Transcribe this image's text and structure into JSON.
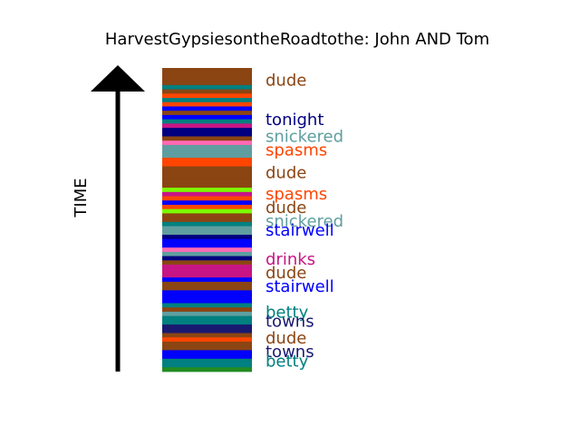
{
  "chart_data": {
    "type": "bar",
    "title": "HarvestGypsiesontheRoadtothe: John AND Tom",
    "ylabel": "TIME",
    "stripes": [
      {
        "color": "#8b4513"
      },
      {
        "color": "#8b4513"
      },
      {
        "color": "#8b4513"
      },
      {
        "color": "#8b4513"
      },
      {
        "color": "#008080"
      },
      {
        "color": "#8b4513"
      },
      {
        "color": "#ff4500"
      },
      {
        "color": "#008080"
      },
      {
        "color": "#ff4500"
      },
      {
        "color": "#0000ff"
      },
      {
        "color": "#8b4513"
      },
      {
        "color": "#0000ff"
      },
      {
        "color": "#008080"
      },
      {
        "color": "#c71585"
      },
      {
        "color": "#000080"
      },
      {
        "color": "#000080"
      },
      {
        "color": "#8b4513"
      },
      {
        "color": "#ff69b4"
      },
      {
        "color": "#5f9ea0"
      },
      {
        "color": "#5f9ea0"
      },
      {
        "color": "#5f9ea0"
      },
      {
        "color": "#ff4500"
      },
      {
        "color": "#ff4500"
      },
      {
        "color": "#8b4513"
      },
      {
        "color": "#8b4513"
      },
      {
        "color": "#8b4513"
      },
      {
        "color": "#8b4513"
      },
      {
        "color": "#8b4513"
      },
      {
        "color": "#7cfc00"
      },
      {
        "color": "#c71585"
      },
      {
        "color": "#ff4500"
      },
      {
        "color": "#0000ff"
      },
      {
        "color": "#ff4500"
      },
      {
        "color": "#7cfc00"
      },
      {
        "color": "#8b4513"
      },
      {
        "color": "#8b4513"
      },
      {
        "color": "#008080"
      },
      {
        "color": "#5f9ea0"
      },
      {
        "color": "#5f9ea0"
      },
      {
        "color": "#000080"
      },
      {
        "color": "#0000ff"
      },
      {
        "color": "#0000ff"
      },
      {
        "color": "#ff69b4"
      },
      {
        "color": "#5f9ea0"
      },
      {
        "color": "#000080"
      },
      {
        "color": "#8b4513"
      },
      {
        "color": "#c71585"
      },
      {
        "color": "#c71585"
      },
      {
        "color": "#c71585"
      },
      {
        "color": "#0000ff"
      },
      {
        "color": "#8b4513"
      },
      {
        "color": "#8b4513"
      },
      {
        "color": "#0000ff"
      },
      {
        "color": "#0000ff"
      },
      {
        "color": "#0000ff"
      },
      {
        "color": "#008080"
      },
      {
        "color": "#8b4513"
      },
      {
        "color": "#5f9ea0"
      },
      {
        "color": "#008080"
      },
      {
        "color": "#008080"
      },
      {
        "color": "#191970"
      },
      {
        "color": "#191970"
      },
      {
        "color": "#8b4513"
      },
      {
        "color": "#ff4500"
      },
      {
        "color": "#8b4513"
      },
      {
        "color": "#8b4513"
      },
      {
        "color": "#0000ff"
      },
      {
        "color": "#0000ff"
      },
      {
        "color": "#008080"
      },
      {
        "color": "#008080"
      },
      {
        "color": "#228b22"
      }
    ],
    "labels": [
      {
        "text": "dude",
        "position": 0.04,
        "color": "#8b4513"
      },
      {
        "text": "tonight",
        "position": 0.17,
        "color": "#000080"
      },
      {
        "text": "snickered",
        "position": 0.225,
        "color": "#5f9ea0"
      },
      {
        "text": "spasms",
        "position": 0.27,
        "color": "#ff4500"
      },
      {
        "text": "dude",
        "position": 0.345,
        "color": "#8b4513"
      },
      {
        "text": "spasms",
        "position": 0.415,
        "color": "#ff4500"
      },
      {
        "text": "dude",
        "position": 0.46,
        "color": "#8b4513"
      },
      {
        "text": "snickered",
        "position": 0.505,
        "color": "#5f9ea0"
      },
      {
        "text": "stairwell",
        "position": 0.535,
        "color": "#0000ff"
      },
      {
        "text": "drinks",
        "position": 0.63,
        "color": "#c71585"
      },
      {
        "text": "dude",
        "position": 0.675,
        "color": "#8b4513"
      },
      {
        "text": "stairwell",
        "position": 0.72,
        "color": "#0000ff"
      },
      {
        "text": "betty",
        "position": 0.805,
        "color": "#008080"
      },
      {
        "text": "towns",
        "position": 0.835,
        "color": "#191970"
      },
      {
        "text": "dude",
        "position": 0.89,
        "color": "#8b4513"
      },
      {
        "text": "towns",
        "position": 0.935,
        "color": "#191970"
      },
      {
        "text": "betty",
        "position": 0.965,
        "color": "#008080"
      }
    ]
  }
}
